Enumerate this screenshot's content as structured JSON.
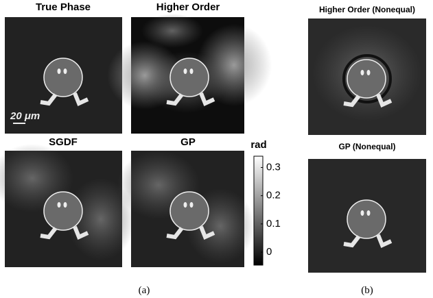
{
  "panels": [
    {
      "title": "True Phase"
    },
    {
      "title": "Higher Order"
    },
    {
      "title": "SGDF"
    },
    {
      "title": "GP"
    },
    {
      "title": "Higher Order (Nonequal)"
    },
    {
      "title": "GP (Nonequal)"
    }
  ],
  "scale_bar": "20 μm",
  "colorbar": {
    "label": "rad",
    "lim": [
      -0.046,
      0.34
    ],
    "ticks": [
      0,
      0.1,
      0.2,
      0.3
    ]
  },
  "captions": [
    "(a)",
    "(b)"
  ]
}
